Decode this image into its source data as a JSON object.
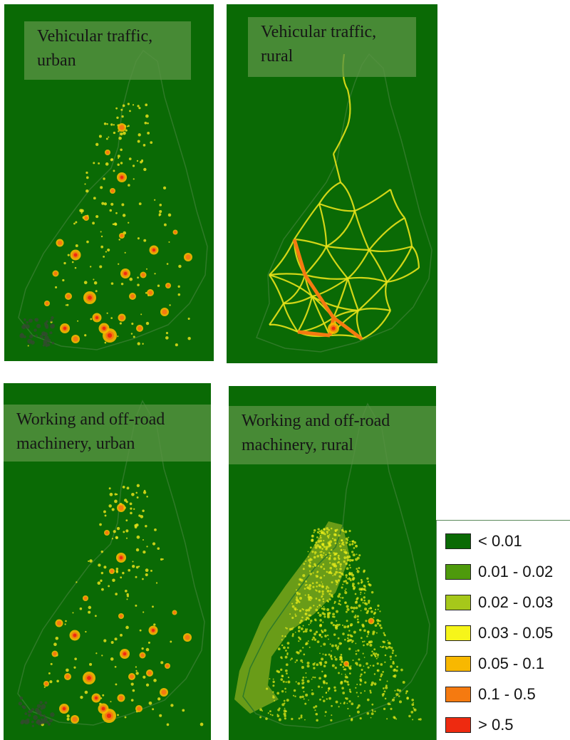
{
  "panels": [
    {
      "id": "vehicular-urban",
      "line1": "Vehicular traffic,",
      "line2": "urban"
    },
    {
      "id": "vehicular-rural",
      "line1": "Vehicular traffic,",
      "line2": "rural"
    },
    {
      "id": "machinery-urban",
      "line1": "Working and off-road",
      "line2": "machinery, urban"
    },
    {
      "id": "machinery-rural",
      "line1": "Working and off-road",
      "line2": "machinery, rural"
    }
  ],
  "legend": {
    "items": [
      {
        "label": "< 0.01",
        "color": "#0a6a05"
      },
      {
        "label": "0.01 - 0.02",
        "color": "#4e9a0c"
      },
      {
        "label": "0.02 - 0.03",
        "color": "#a6c81a"
      },
      {
        "label": "0.03 - 0.05",
        "color": "#f6f51a"
      },
      {
        "label": "0.05 - 0.1",
        "color": "#f8b800"
      },
      {
        "label": "0.1 - 0.5",
        "color": "#f57a10"
      },
      {
        "label": "> 0.5",
        "color": "#ee2a10"
      }
    ]
  },
  "colors": {
    "background": "#0a6a05",
    "border_line": "#3a7a30",
    "label_box": "#589442"
  }
}
